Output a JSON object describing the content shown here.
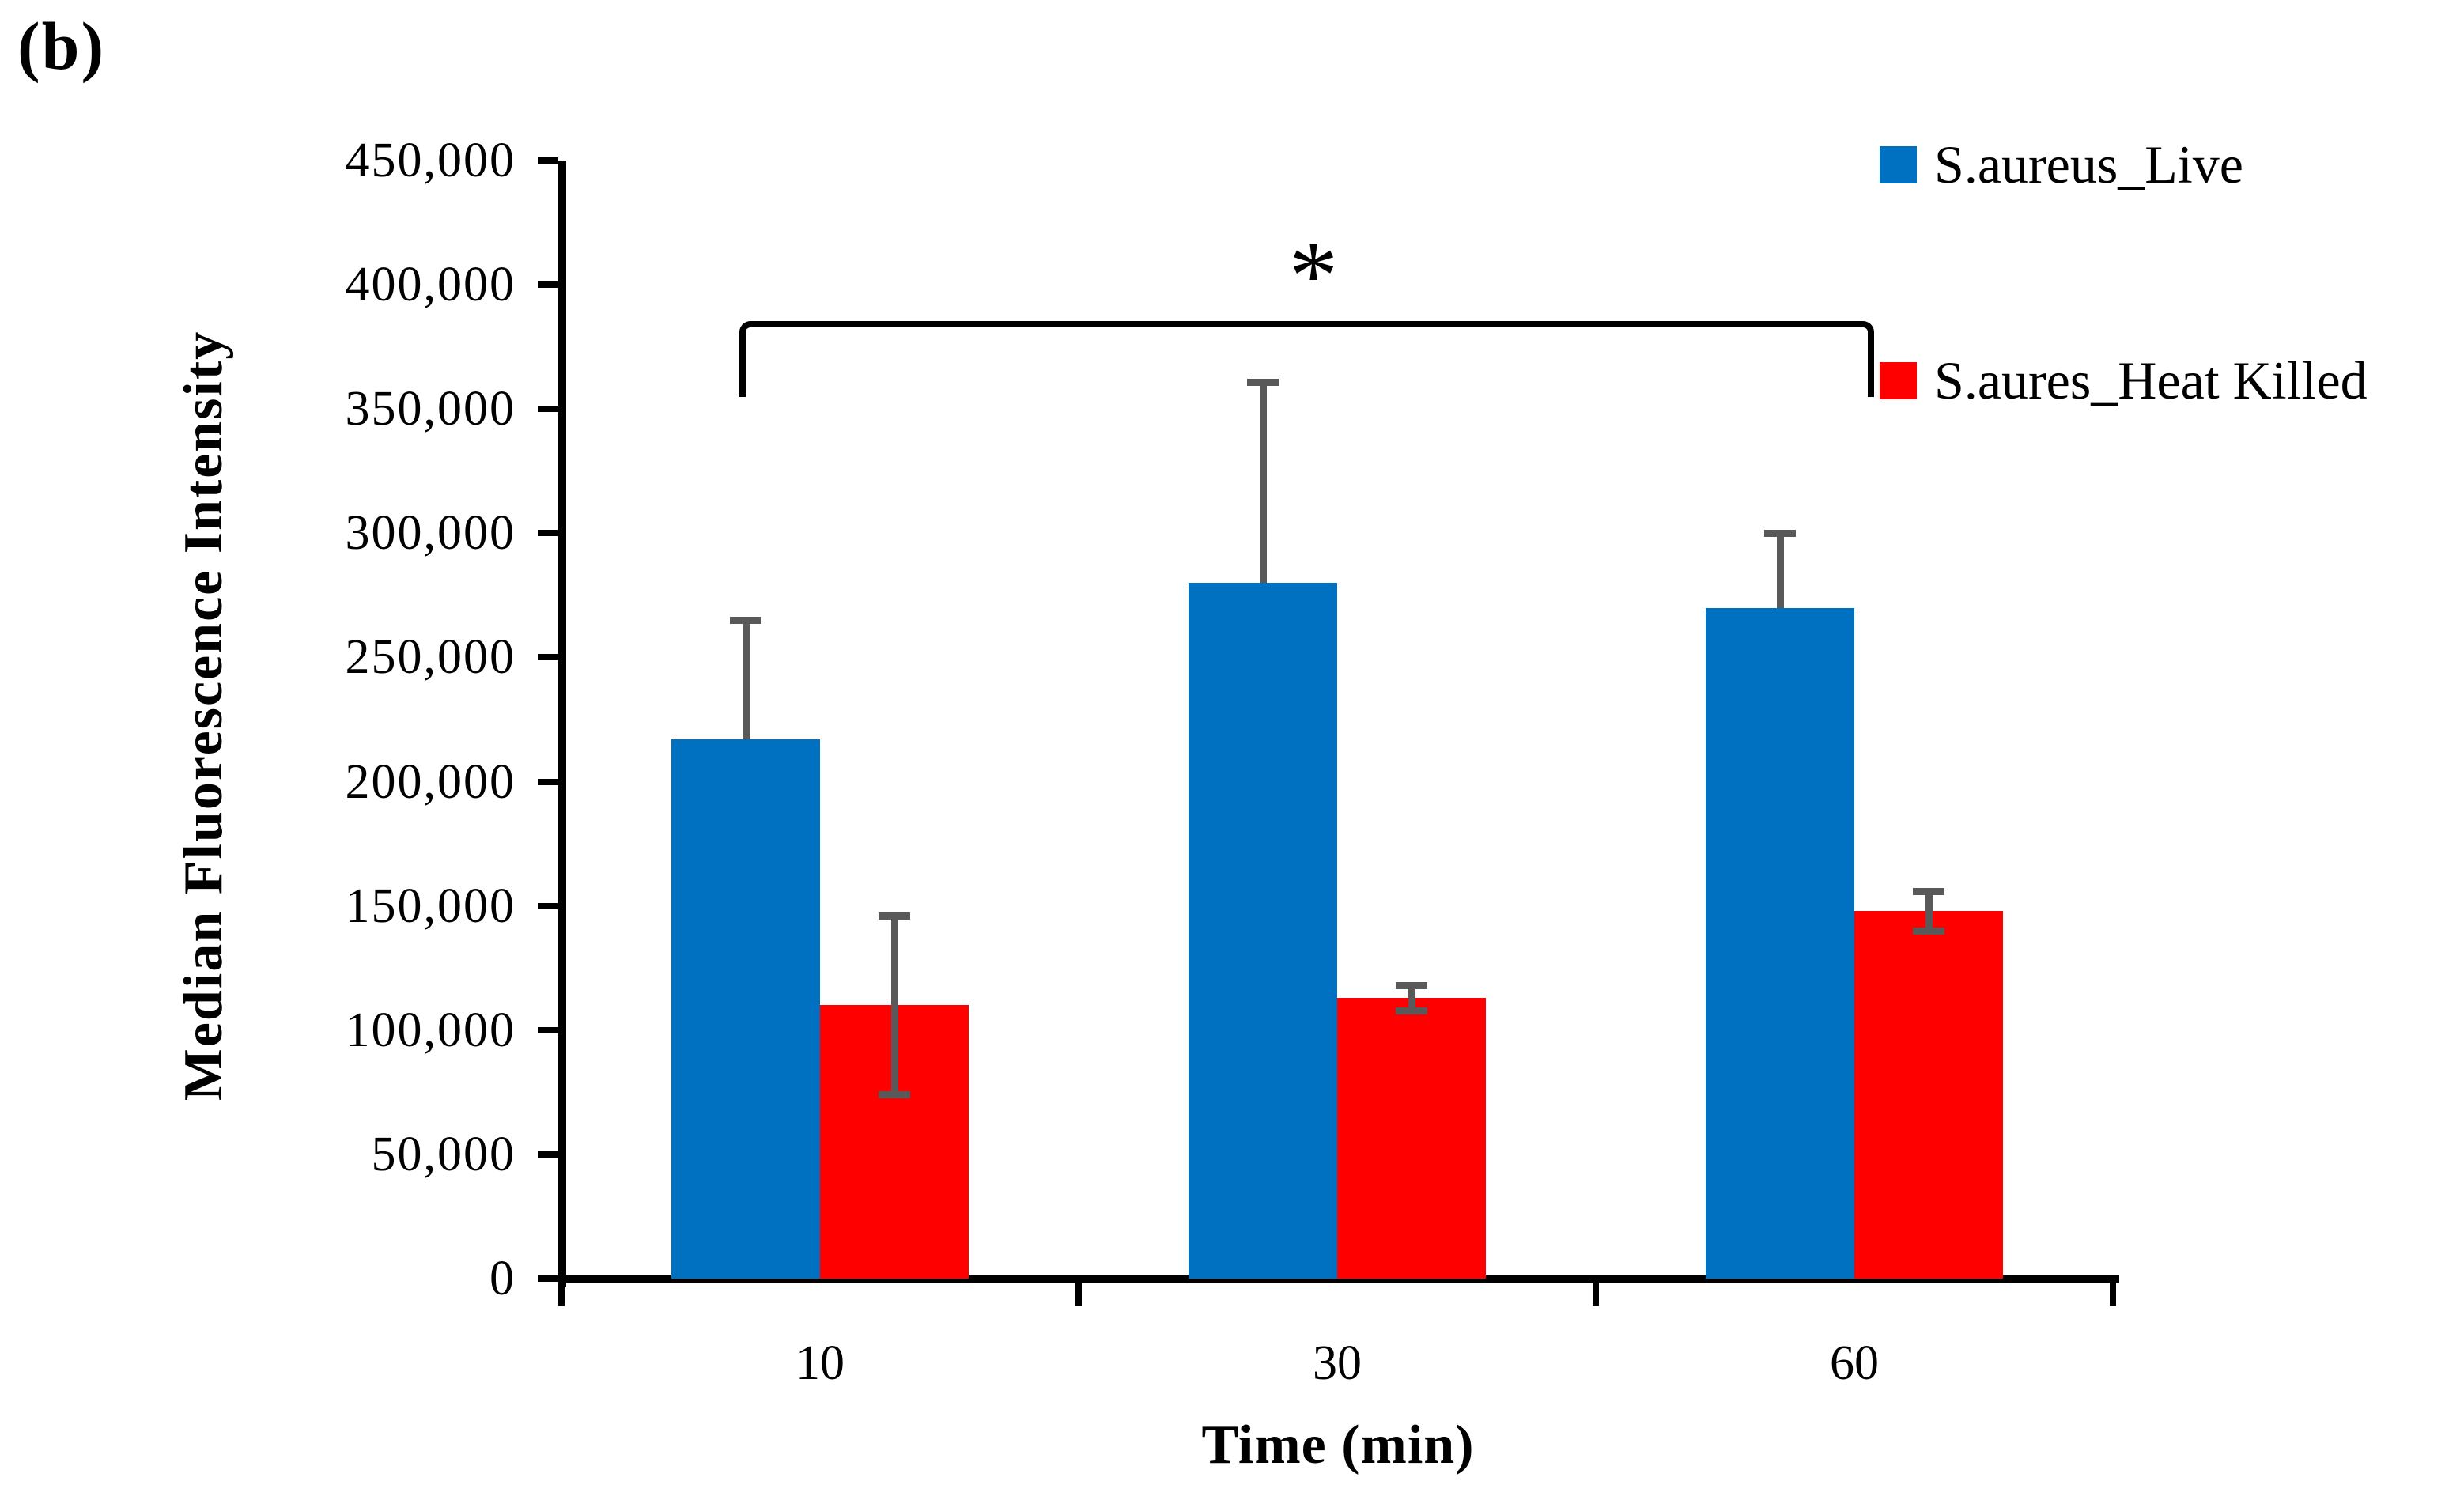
{
  "panel_label": "(b)",
  "chart_data": {
    "type": "bar",
    "title": "",
    "categories": [
      "10",
      "30",
      "60"
    ],
    "xlabel": "Time (min)",
    "ylabel": "Median Fluorescence Intensity",
    "ylim": [
      0,
      450000
    ],
    "ytick_step": 50000,
    "ytick_labels_top_to_bottom": [
      "450,000",
      "400,000",
      "350,000",
      "300,000",
      "250,000",
      "200,000",
      "150,000",
      "100,000",
      "50,000",
      "0"
    ],
    "grid": false,
    "legend_position": "top-right",
    "series": [
      {
        "name": "S.aureus_Live",
        "color": "#0070C0",
        "values": [
          217000,
          280000,
          270000
        ],
        "error_up": [
          48000,
          81000,
          30000
        ],
        "error_down": [
          0,
          0,
          0
        ]
      },
      {
        "name": "S.aures_Heat Killed",
        "color": "#FF0000",
        "values": [
          110000,
          113000,
          148000
        ],
        "error_up": [
          36000,
          5000,
          8000
        ],
        "error_down": [
          36000,
          5000,
          8000
        ]
      }
    ],
    "significance": {
      "label": "*",
      "from_category": "10",
      "to_category": "60"
    }
  },
  "colors": {
    "live_blue": "#0070C0",
    "heat_killed_red": "#FF0000",
    "error_bar_gray": "#595959",
    "axis_black": "#000000"
  }
}
